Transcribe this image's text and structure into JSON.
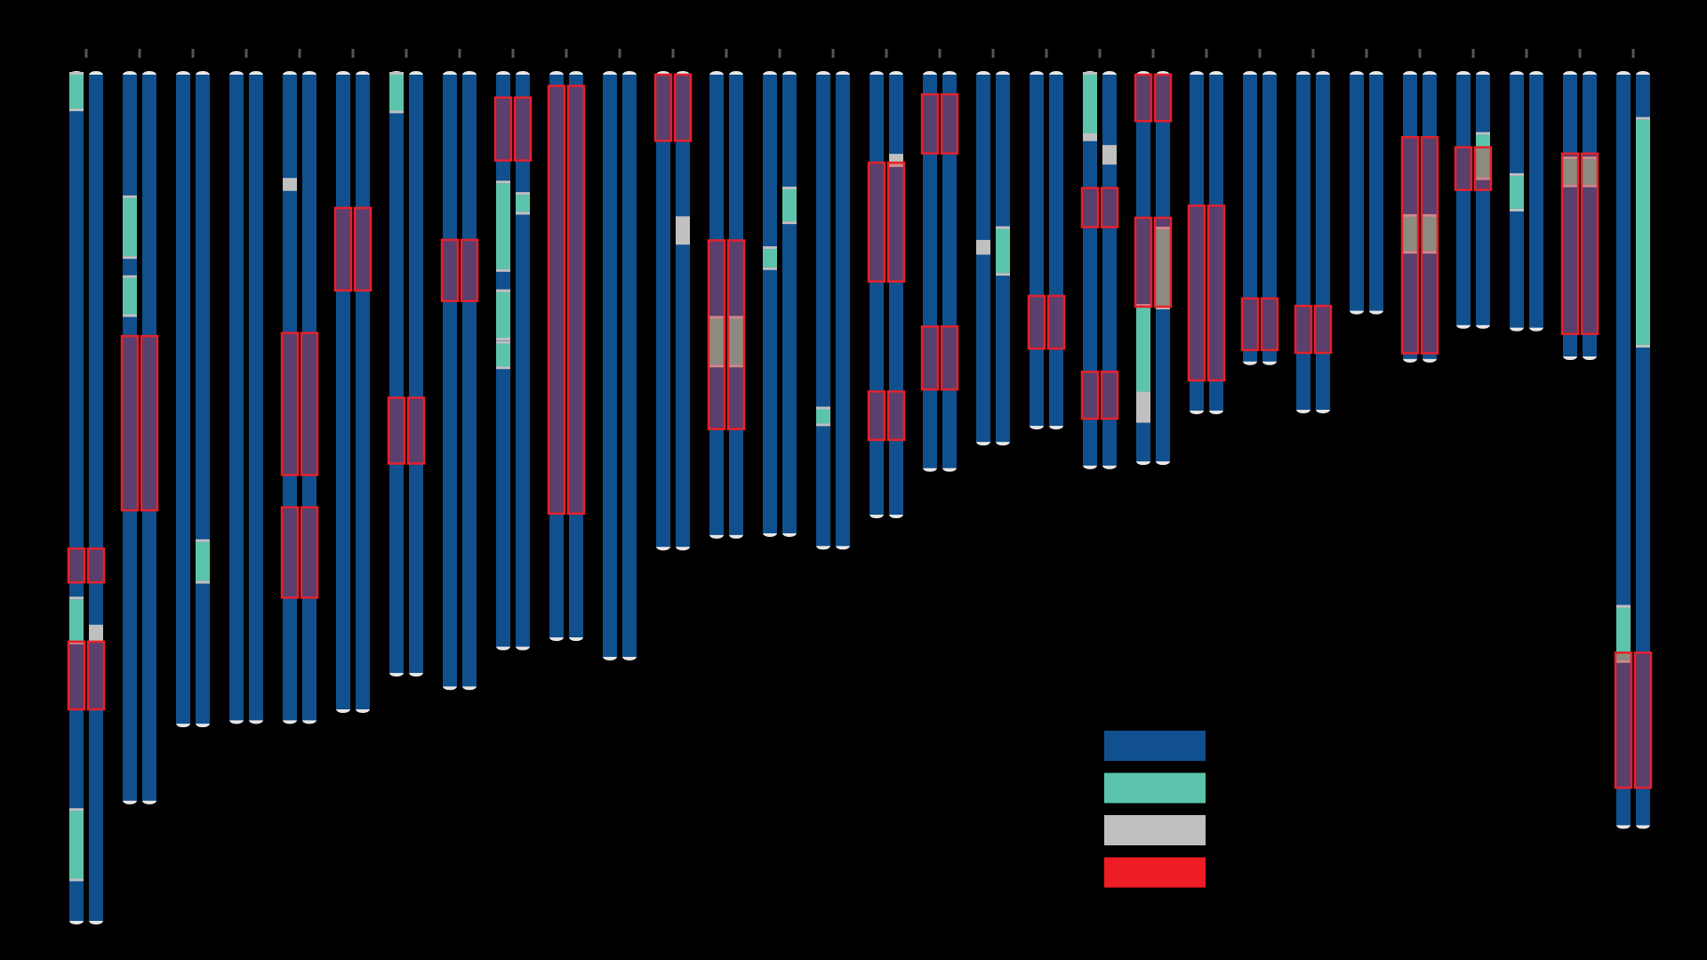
{
  "colors": {
    "background": "#000000",
    "chromosome_base": "#10508f",
    "homozygous": "#5cc4ac",
    "gap": "#c0c0c0",
    "roh_box": "#e8202a",
    "telomere_cap": "#e6e6e6",
    "tick": "#555555",
    "highlight_overlap": "#f0a8a0"
  },
  "legend": {
    "items": [
      {
        "key": "base",
        "color": "#10508f"
      },
      {
        "key": "homozygous",
        "color": "#5cc4ac"
      },
      {
        "key": "gap",
        "color": "#c0c0c0"
      },
      {
        "key": "roh",
        "color": "#ee1c24"
      }
    ]
  },
  "chromosomes": [
    {
      "id": "1",
      "length": 1.0,
      "a": [
        [
          0.0,
          0.04,
          "homozygous"
        ],
        [
          0.62,
          0.67,
          "homozygous"
        ],
        [
          0.87,
          0.95,
          "homozygous"
        ]
      ],
      "b": [
        [
          0.65,
          0.67,
          "gap"
        ]
      ],
      "roh": [
        [
          0.56,
          0.6
        ],
        [
          0.67,
          0.75
        ]
      ]
    },
    {
      "id": "2",
      "length": 0.858,
      "a": [
        [
          0.17,
          0.25,
          "homozygous"
        ],
        [
          0.28,
          0.33,
          "homozygous"
        ]
      ],
      "b": [],
      "roh": [
        [
          0.36,
          0.6
        ]
      ]
    },
    {
      "id": "3",
      "length": 0.767,
      "a": [],
      "b": [
        [
          0.72,
          0.78,
          "homozygous"
        ]
      ],
      "roh": []
    },
    {
      "id": "4",
      "length": 0.763,
      "a": [],
      "b": [],
      "roh": []
    },
    {
      "id": "5",
      "length": 0.763,
      "a": [
        [
          0.16,
          0.18,
          "gap"
        ]
      ],
      "b": [],
      "roh": [
        [
          0.4,
          0.62
        ],
        [
          0.67,
          0.81
        ]
      ]
    },
    {
      "id": "6",
      "length": 0.75,
      "a": [],
      "b": [],
      "roh": [
        [
          0.21,
          0.34
        ]
      ]
    },
    {
      "id": "7",
      "length": 0.707,
      "a": [
        [
          0.0,
          0.06,
          "homozygous"
        ]
      ],
      "b": [],
      "roh": [
        [
          0.54,
          0.65
        ]
      ]
    },
    {
      "id": "8",
      "length": 0.723,
      "a": [],
      "b": [],
      "roh": [
        [
          0.27,
          0.37
        ]
      ]
    },
    {
      "id": "9",
      "length": 0.676,
      "a": [
        [
          0.19,
          0.34,
          "homozygous"
        ],
        [
          0.38,
          0.46,
          "homozygous"
        ],
        [
          0.47,
          0.51,
          "homozygous"
        ]
      ],
      "b": [
        [
          0.21,
          0.24,
          "homozygous"
        ]
      ],
      "roh": [
        [
          0.04,
          0.15
        ]
      ]
    },
    {
      "id": "10",
      "length": 0.665,
      "a": [],
      "b": [],
      "roh": [
        [
          0.02,
          0.78
        ]
      ]
    },
    {
      "id": "11",
      "length": 0.688,
      "a": [],
      "b": [],
      "roh": []
    },
    {
      "id": "12",
      "length": 0.558,
      "a": [],
      "b": [
        [
          0.3,
          0.36,
          "gap"
        ]
      ],
      "roh": [
        [
          0.0,
          0.14
        ]
      ]
    },
    {
      "id": "13",
      "length": 0.544,
      "a": [
        [
          0.53,
          0.63,
          "homozygous"
        ]
      ],
      "b": [
        [
          0.53,
          0.63,
          "homozygous"
        ]
      ],
      "roh": [
        [
          0.36,
          0.77
        ]
      ]
    },
    {
      "id": "14",
      "length": 0.542,
      "a": [
        [
          0.38,
          0.42,
          "homozygous"
        ]
      ],
      "b": [
        [
          0.25,
          0.32,
          "homozygous"
        ]
      ],
      "roh": []
    },
    {
      "id": "15",
      "length": 0.557,
      "a": [
        [
          0.71,
          0.74,
          "homozygous"
        ]
      ],
      "b": [],
      "roh": []
    },
    {
      "id": "16",
      "length": 0.52,
      "a": [],
      "b": [
        [
          0.18,
          0.21,
          "gap"
        ]
      ],
      "roh": [
        [
          0.2,
          0.47
        ],
        [
          0.72,
          0.83
        ]
      ]
    },
    {
      "id": "17",
      "length": 0.465,
      "a": [],
      "b": [],
      "roh": [
        [
          0.05,
          0.2
        ],
        [
          0.64,
          0.8
        ]
      ]
    },
    {
      "id": "18",
      "length": 0.434,
      "a": [
        [
          0.45,
          0.49,
          "gap"
        ]
      ],
      "b": [
        [
          0.42,
          0.54,
          "homozygous"
        ]
      ],
      "roh": []
    },
    {
      "id": "19",
      "length": 0.415,
      "a": [],
      "b": [],
      "roh": [
        [
          0.63,
          0.78
        ]
      ]
    },
    {
      "id": "20",
      "length": 0.462,
      "a": [
        [
          0.0,
          0.15,
          "homozygous"
        ],
        [
          0.15,
          0.17,
          "gap"
        ]
      ],
      "b": [
        [
          0.18,
          0.23,
          "gap"
        ]
      ],
      "roh": [
        [
          0.29,
          0.39
        ],
        [
          0.76,
          0.88
        ]
      ]
    },
    {
      "id": "21",
      "length": 0.457,
      "a": [
        [
          0.6,
          0.82,
          "homozygous"
        ],
        [
          0.82,
          0.9,
          "gap"
        ]
      ],
      "b": [
        [
          0.4,
          0.6,
          "homozygous"
        ]
      ],
      "roh": [
        [
          0.0,
          0.12
        ],
        [
          0.37,
          0.6
        ]
      ]
    },
    {
      "id": "22",
      "length": 0.397,
      "a": [],
      "b": [],
      "roh": [
        [
          0.39,
          0.91
        ]
      ]
    },
    {
      "id": "23",
      "length": 0.339,
      "a": [],
      "b": [],
      "roh": [
        [
          0.78,
          0.96
        ]
      ]
    },
    {
      "id": "24",
      "length": 0.396,
      "a": [],
      "b": [],
      "roh": [
        [
          0.69,
          0.83
        ]
      ]
    },
    {
      "id": "25",
      "length": 0.279,
      "a": [],
      "b": [],
      "roh": []
    },
    {
      "id": "26",
      "length": 0.336,
      "a": [
        [
          0.5,
          0.62,
          "homozygous"
        ]
      ],
      "b": [
        [
          0.5,
          0.62,
          "homozygous"
        ]
      ],
      "roh": [
        [
          0.22,
          0.98
        ]
      ]
    },
    {
      "id": "27",
      "length": 0.296,
      "a": [],
      "b": [
        [
          0.24,
          0.41,
          "homozygous"
        ]
      ],
      "roh": [
        [
          0.29,
          0.46
        ]
      ]
    },
    {
      "id": "28",
      "length": 0.299,
      "a": [
        [
          0.4,
          0.53,
          "homozygous"
        ]
      ],
      "b": [],
      "roh": []
    },
    {
      "id": "29",
      "length": 0.333,
      "a": [
        [
          0.3,
          0.39,
          "homozygous"
        ]
      ],
      "b": [
        [
          0.3,
          0.39,
          "homozygous"
        ]
      ],
      "roh": [
        [
          0.28,
          0.92
        ]
      ]
    },
    {
      "id": "X",
      "length": 0.887,
      "a": [
        [
          0.71,
          0.78,
          "homozygous"
        ]
      ],
      "b": [
        [
          0.06,
          0.36,
          "homozygous"
        ]
      ],
      "roh": [
        [
          0.77,
          0.95
        ]
      ]
    }
  ]
}
